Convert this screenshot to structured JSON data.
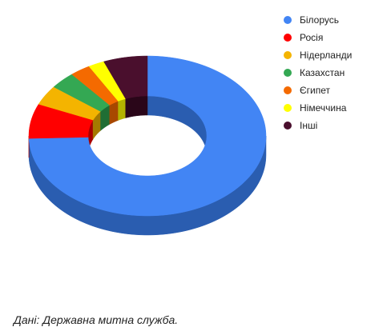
{
  "chart_data": {
    "type": "pie",
    "variant": "3d-donut",
    "legend_position": "right",
    "series": [
      {
        "name": "Білорусь",
        "value": 74.5,
        "color": "#4285F4",
        "side_color": "#2A5DB0"
      },
      {
        "name": "Росія",
        "value": 7.0,
        "color": "#FF0000",
        "side_color": "#A80000"
      },
      {
        "name": "Нідерланди",
        "value": 4.0,
        "color": "#F4B400",
        "side_color": "#A57A00"
      },
      {
        "name": "Казахстан",
        "value": 3.5,
        "color": "#34A853",
        "side_color": "#1F6E34"
      },
      {
        "name": "Єгипет",
        "value": 2.8,
        "color": "#F46A00",
        "side_color": "#A84800"
      },
      {
        "name": "Німеччина",
        "value": 2.2,
        "color": "#FFFF00",
        "side_color": "#B3B300"
      },
      {
        "name": "Інші",
        "value": 6.0,
        "color": "#4A0F2D",
        "side_color": "#2A0619"
      }
    ]
  },
  "caption": "Дані: Державна митна служба."
}
